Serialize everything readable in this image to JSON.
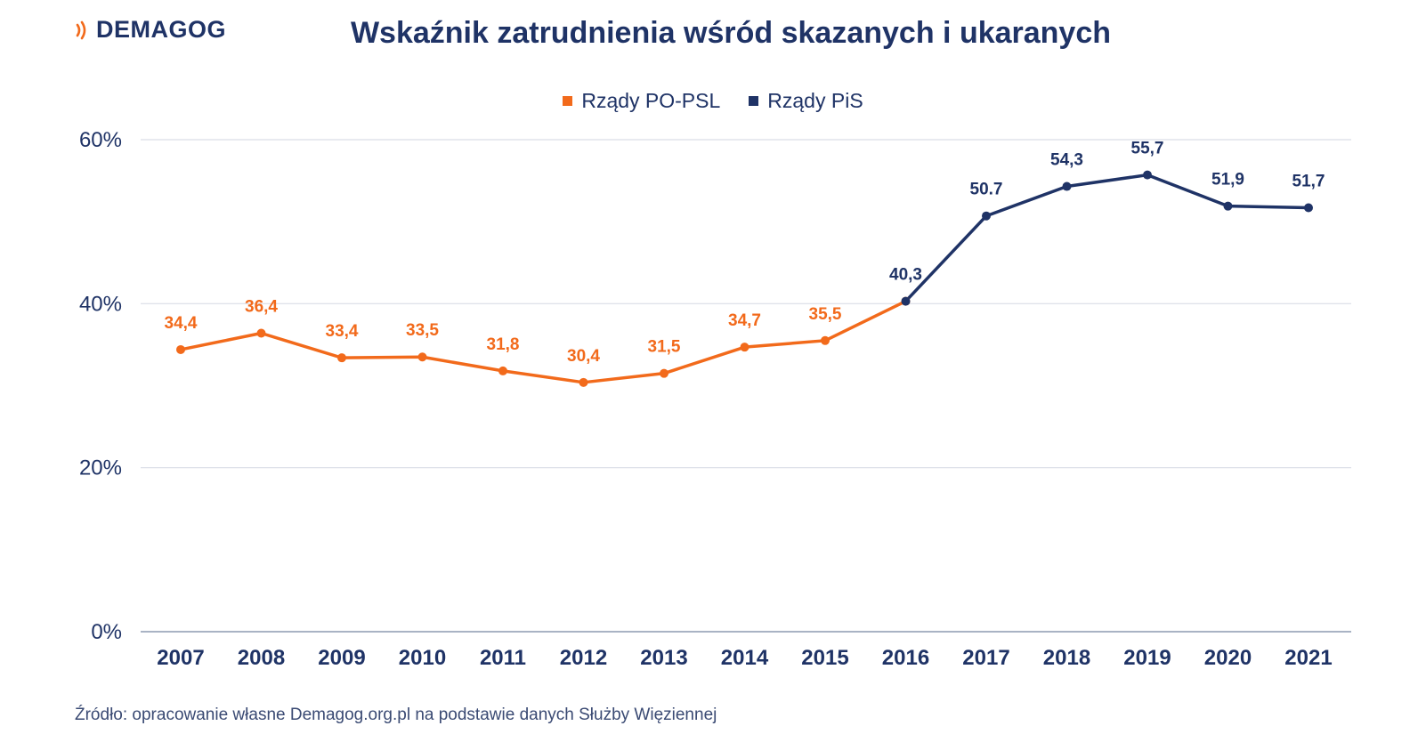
{
  "header": {
    "logo_text": "DEMAGOG",
    "title": "Wskaźnik zatrudnienia wśród skazanych i ukaranych"
  },
  "footer": {
    "source": "Źródło: opracowanie własne Demagog.org.pl na podstawie danych Służby Więziennej"
  },
  "colors": {
    "po_psl": "#f26a1b",
    "pis": "#1f3366",
    "grid": "#d9dde6",
    "axis": "#a9b3c4",
    "brand": "#f26a1b"
  },
  "chart_data": {
    "type": "line",
    "title": "Wskaźnik zatrudnienia wśród skazanych i ukaranych",
    "xlabel": "",
    "ylabel": "",
    "categories": [
      "2007",
      "2008",
      "2009",
      "2010",
      "2011",
      "2012",
      "2013",
      "2014",
      "2015",
      "2016",
      "2017",
      "2018",
      "2019",
      "2020",
      "2021"
    ],
    "y_ticks": [
      "0%",
      "20%",
      "40%",
      "60%"
    ],
    "ylim": [
      0,
      60
    ],
    "grid": true,
    "legend_position": "top-center",
    "series": [
      {
        "name": "Rządy PO-PSL",
        "color": "#f26a1b",
        "x": [
          "2007",
          "2008",
          "2009",
          "2010",
          "2011",
          "2012",
          "2013",
          "2014",
          "2015",
          "2016"
        ],
        "values": [
          34.4,
          36.4,
          33.4,
          33.5,
          31.8,
          30.4,
          31.5,
          34.7,
          35.5,
          40.3
        ],
        "labels": [
          "34,4",
          "36,4",
          "33,4",
          "33,5",
          "31,8",
          "30,4",
          "31,5",
          "34,7",
          "35,5",
          ""
        ]
      },
      {
        "name": "Rządy PiS",
        "color": "#1f3366",
        "x": [
          "2016",
          "2017",
          "2018",
          "2019",
          "2020",
          "2021"
        ],
        "values": [
          40.3,
          50.7,
          54.3,
          55.7,
          51.9,
          51.7
        ],
        "labels": [
          "40,3",
          "50.7",
          "54,3",
          "55,7",
          "51,9",
          "51,7"
        ]
      }
    ]
  }
}
